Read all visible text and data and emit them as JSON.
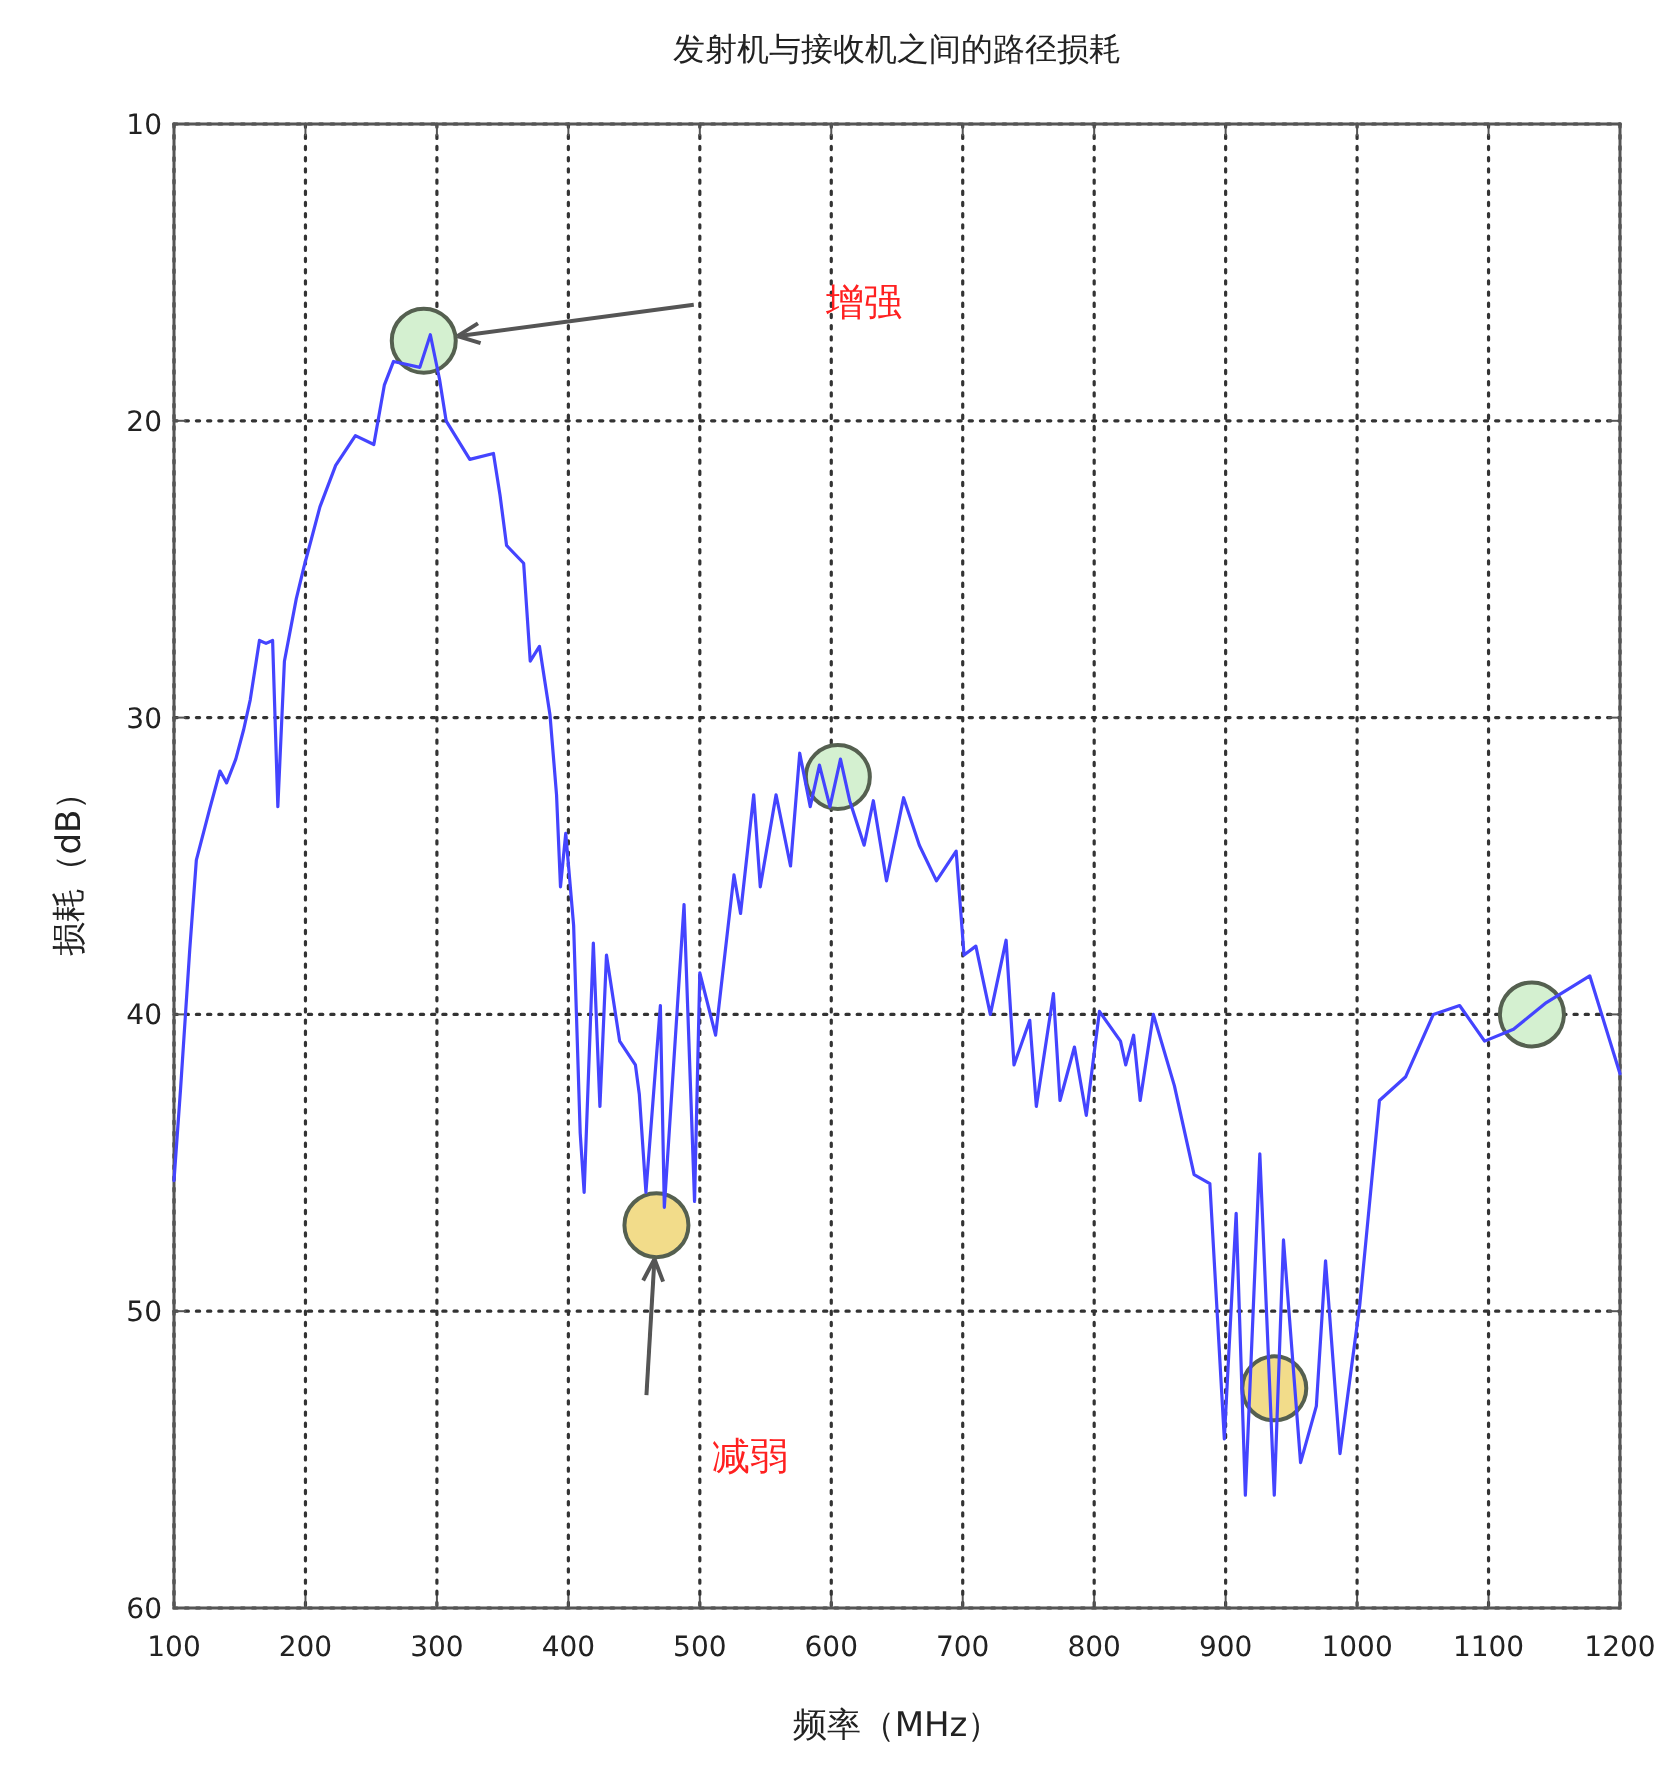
{
  "chart_data": {
    "type": "line",
    "title": "发射机与接收机之间的路径损耗",
    "xlabel": "频率（MHz）",
    "ylabel": "损耗（dB）",
    "xlim": [
      100,
      1200
    ],
    "xticks": [
      100,
      200,
      300,
      400,
      500,
      600,
      700,
      800,
      900,
      1000,
      1100,
      1200
    ],
    "ylim": [
      60,
      10
    ],
    "yticks": [
      10,
      20,
      30,
      40,
      50,
      60
    ],
    "grid": true,
    "annotations": [
      "增强",
      "减弱"
    ],
    "series": [
      {
        "color": "#4444ff",
        "marker": "none",
        "x": [
          100,
          105,
          112,
          117,
          127,
          135,
          140,
          147,
          153,
          158,
          165,
          170,
          175,
          179,
          184,
          193,
          199,
          211,
          223,
          238,
          252,
          260,
          267,
          287,
          295,
          302,
          307,
          325,
          343,
          348,
          353,
          366,
          371,
          378,
          386,
          391,
          394,
          398,
          404,
          409,
          412,
          419,
          424,
          429,
          439,
          451,
          454,
          459,
          470,
          473,
          488,
          496,
          500,
          512,
          526,
          531,
          541,
          546,
          558,
          569,
          576,
          584,
          591,
          599,
          607,
          614,
          625,
          632,
          642,
          655,
          667,
          680,
          695,
          701,
          710,
          721,
          733,
          739,
          751,
          756,
          769,
          774,
          785,
          794,
          804,
          820,
          824,
          830,
          835,
          845,
          861,
          876,
          888,
          899,
          908,
          915,
          926,
          937,
          944,
          957,
          969,
          976,
          987,
          1002,
          1017,
          1037,
          1058,
          1078,
          1097,
          1119,
          1144,
          1177,
          1200
        ],
        "values": [
          45.6,
          42.5,
          37.8,
          34.8,
          33.1,
          31.8,
          32.2,
          31.4,
          30.4,
          29.4,
          27.4,
          27.5,
          27.4,
          33.0,
          28.1,
          26.0,
          24.9,
          22.9,
          21.5,
          20.5,
          20.8,
          18.8,
          18.0,
          18.2,
          17.1,
          18.6,
          20.0,
          21.3,
          21.1,
          22.5,
          24.2,
          24.8,
          28.1,
          27.6,
          29.9,
          32.6,
          35.7,
          33.9,
          37.0,
          44.0,
          46.0,
          37.6,
          43.1,
          38.0,
          40.9,
          41.7,
          42.7,
          46.0,
          39.7,
          46.5,
          36.3,
          46.3,
          38.6,
          40.7,
          35.3,
          36.6,
          32.6,
          35.7,
          32.6,
          35.0,
          31.2,
          33.0,
          31.6,
          33.0,
          31.4,
          32.8,
          34.3,
          32.8,
          35.5,
          32.7,
          34.3,
          35.5,
          34.5,
          38.0,
          37.7,
          40.0,
          37.5,
          41.7,
          40.2,
          43.1,
          39.3,
          42.9,
          41.1,
          43.4,
          39.9,
          40.9,
          41.7,
          40.7,
          42.9,
          40.0,
          42.4,
          45.4,
          45.7,
          54.3,
          46.7,
          56.2,
          44.7,
          56.2,
          47.6,
          55.1,
          53.2,
          48.3,
          54.8,
          49.8,
          42.9,
          42.1,
          40.0,
          39.7,
          40.9,
          40.5,
          39.6,
          38.7,
          42.0
        ]
      },
      {
        "type": "scatter",
        "color": "#d4f0d0",
        "marker": "circle",
        "x": [
          290,
          605,
          1133
        ],
        "values": [
          17.3,
          32.0,
          40.0
        ]
      },
      {
        "type": "scatter",
        "color": "#f2dc8a",
        "marker": "circle",
        "x": [
          467,
          937
        ],
        "values": [
          47.1,
          52.6
        ]
      }
    ]
  }
}
